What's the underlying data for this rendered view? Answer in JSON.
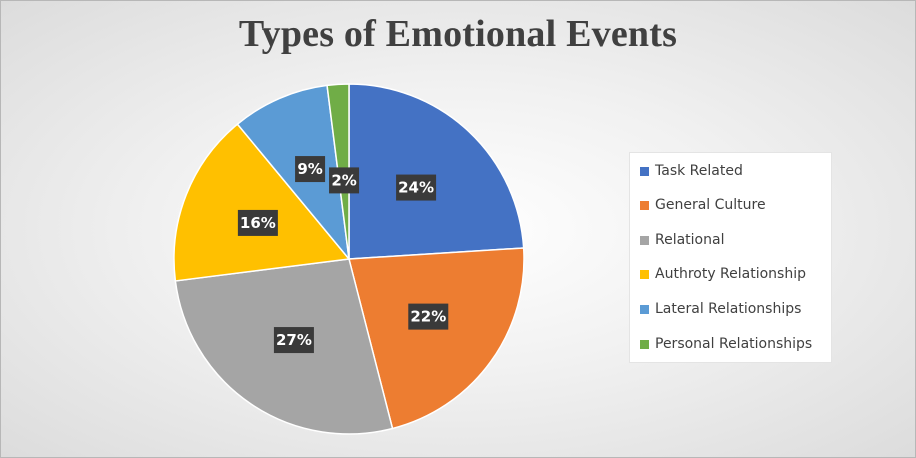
{
  "chart_data": {
    "type": "pie",
    "title": "Types of Emotional Events",
    "categories": [
      "Task Related",
      "General Culture",
      "Relational",
      "Authroty Relationship",
      "Lateral Relationships",
      "Personal Relationships"
    ],
    "values": [
      24,
      22,
      27,
      16,
      9,
      2
    ],
    "data_labels": [
      "24%",
      "22%",
      "27%",
      "16%",
      "9%",
      "2%"
    ],
    "colors": [
      "#4472C4",
      "#ED7D31",
      "#A5A5A5",
      "#FFC000",
      "#5B9BD5",
      "#70AD47"
    ],
    "start_angle_deg": 0,
    "direction": "clockwise",
    "legend_position": "right"
  }
}
